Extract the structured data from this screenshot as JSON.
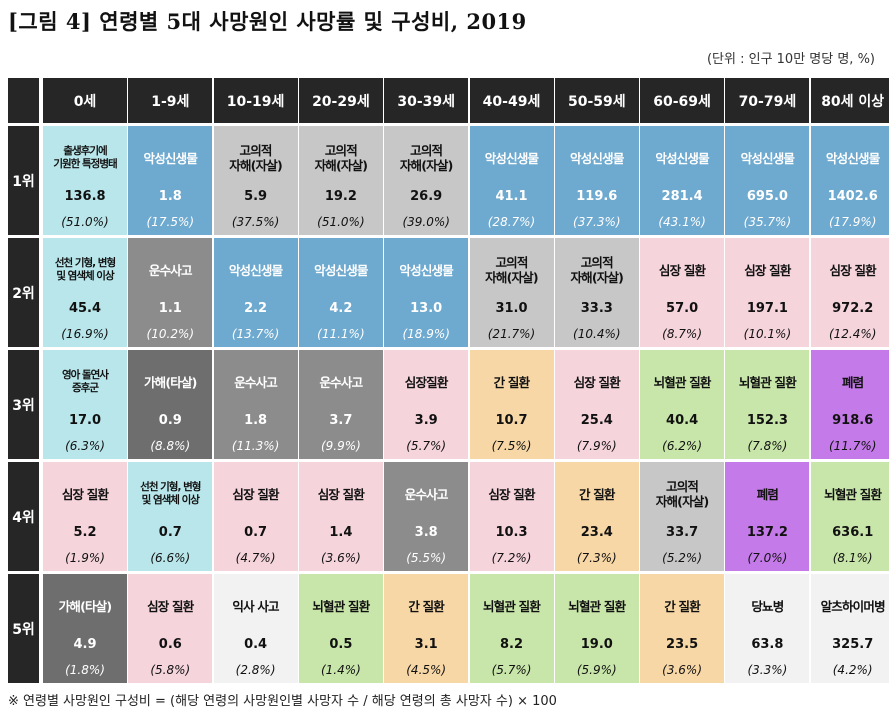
{
  "title": "[그림 4] 연령별 5대 사망원인 사망률 및 구성비, 2019",
  "unit_note": "(단위 : 인구 10만 명당 명, %)",
  "age_groups": [
    "0세",
    "1-9세",
    "10-19세",
    "20-29세",
    "30-39세",
    "40-49세",
    "50-59세",
    "60-69세",
    "70-79세",
    "80세 이상"
  ],
  "ranks": [
    "1위",
    "2위",
    "3위",
    "4위",
    "5위"
  ],
  "rows": [
    [
      {
        "name": "출생후기에\n기원한 특정병태",
        "value": "136.8",
        "pct": "(51.0%)",
        "color": "cyan",
        "small": true
      },
      {
        "name": "악성신생물",
        "value": "1.8",
        "pct": "(17.5%)",
        "color": "cancer"
      },
      {
        "name": "고의적\n자해(자살)",
        "value": "5.9",
        "pct": "(37.5%)",
        "color": "suicide"
      },
      {
        "name": "고의적\n자해(자살)",
        "value": "19.2",
        "pct": "(51.0%)",
        "color": "suicide"
      },
      {
        "name": "고의적\n자해(자살)",
        "value": "26.9",
        "pct": "(39.0%)",
        "color": "suicide"
      },
      {
        "name": "악성신생물",
        "value": "41.1",
        "pct": "(28.7%)",
        "color": "cancer"
      },
      {
        "name": "악성신생물",
        "value": "119.6",
        "pct": "(37.3%)",
        "color": "cancer"
      },
      {
        "name": "악성신생물",
        "value": "281.4",
        "pct": "(43.1%)",
        "color": "cancer"
      },
      {
        "name": "악성신생물",
        "value": "695.0",
        "pct": "(35.7%)",
        "color": "cancer"
      },
      {
        "name": "악성신생물",
        "value": "1402.6",
        "pct": "(17.9%)",
        "color": "cancer"
      }
    ],
    [
      {
        "name": "선천 기형, 변형\n및 염색체 이상",
        "value": "45.4",
        "pct": "(16.9%)",
        "color": "cyan",
        "small": true
      },
      {
        "name": "운수사고",
        "value": "1.1",
        "pct": "(10.2%)",
        "color": "trans"
      },
      {
        "name": "악성신생물",
        "value": "2.2",
        "pct": "(13.7%)",
        "color": "cancer"
      },
      {
        "name": "악성신생물",
        "value": "4.2",
        "pct": "(11.1%)",
        "color": "cancer"
      },
      {
        "name": "악성신생물",
        "value": "13.0",
        "pct": "(18.9%)",
        "color": "cancer"
      },
      {
        "name": "고의적\n자해(자살)",
        "value": "31.0",
        "pct": "(21.7%)",
        "color": "suicide"
      },
      {
        "name": "고의적\n자해(자살)",
        "value": "33.3",
        "pct": "(10.4%)",
        "color": "suicide"
      },
      {
        "name": "심장 질환",
        "value": "57.0",
        "pct": "(8.7%)",
        "color": "heart"
      },
      {
        "name": "심장 질환",
        "value": "197.1",
        "pct": "(10.1%)",
        "color": "heart"
      },
      {
        "name": "심장 질환",
        "value": "972.2",
        "pct": "(12.4%)",
        "color": "heart"
      }
    ],
    [
      {
        "name": "영아 돌연사\n증후군",
        "value": "17.0",
        "pct": "(6.3%)",
        "color": "cyan",
        "small": true
      },
      {
        "name": "가해(타살)",
        "value": "0.9",
        "pct": "(8.8%)",
        "color": "assault"
      },
      {
        "name": "운수사고",
        "value": "1.8",
        "pct": "(11.3%)",
        "color": "trans"
      },
      {
        "name": "운수사고",
        "value": "3.7",
        "pct": "(9.9%)",
        "color": "trans"
      },
      {
        "name": "심장질환",
        "value": "3.9",
        "pct": "(5.7%)",
        "color": "heart"
      },
      {
        "name": "간 질환",
        "value": "10.7",
        "pct": "(7.5%)",
        "color": "liver"
      },
      {
        "name": "심장 질환",
        "value": "25.4",
        "pct": "(7.9%)",
        "color": "heart"
      },
      {
        "name": "뇌혈관 질환",
        "value": "40.4",
        "pct": "(6.2%)",
        "color": "stroke"
      },
      {
        "name": "뇌혈관 질환",
        "value": "152.3",
        "pct": "(7.8%)",
        "color": "stroke"
      },
      {
        "name": "폐렴",
        "value": "918.6",
        "pct": "(11.7%)",
        "color": "pneu"
      }
    ],
    [
      {
        "name": "심장 질환",
        "value": "5.2",
        "pct": "(1.9%)",
        "color": "heart"
      },
      {
        "name": "선천 기형, 변형\n및 염색체 이상",
        "value": "0.7",
        "pct": "(6.6%)",
        "color": "cyan",
        "small": true
      },
      {
        "name": "심장 질환",
        "value": "0.7",
        "pct": "(4.7%)",
        "color": "heart"
      },
      {
        "name": "심장 질환",
        "value": "1.4",
        "pct": "(3.6%)",
        "color": "heart"
      },
      {
        "name": "운수사고",
        "value": "3.8",
        "pct": "(5.5%)",
        "color": "trans"
      },
      {
        "name": "심장 질환",
        "value": "10.3",
        "pct": "(7.2%)",
        "color": "heart"
      },
      {
        "name": "간 질환",
        "value": "23.4",
        "pct": "(7.3%)",
        "color": "liver"
      },
      {
        "name": "고의적\n자해(자살)",
        "value": "33.7",
        "pct": "(5.2%)",
        "color": "suicide"
      },
      {
        "name": "폐렴",
        "value": "137.2",
        "pct": "(7.0%)",
        "color": "pneu"
      },
      {
        "name": "뇌혈관 질환",
        "value": "636.1",
        "pct": "(8.1%)",
        "color": "stroke"
      }
    ],
    [
      {
        "name": "가해(타살)",
        "value": "4.9",
        "pct": "(1.8%)",
        "color": "assault"
      },
      {
        "name": "심장 질환",
        "value": "0.6",
        "pct": "(5.8%)",
        "color": "heart"
      },
      {
        "name": "익사 사고",
        "value": "0.4",
        "pct": "(2.8%)",
        "color": "white"
      },
      {
        "name": "뇌혈관 질환",
        "value": "0.5",
        "pct": "(1.4%)",
        "color": "stroke"
      },
      {
        "name": "간 질환",
        "value": "3.1",
        "pct": "(4.5%)",
        "color": "liver"
      },
      {
        "name": "뇌혈관 질환",
        "value": "8.2",
        "pct": "(5.7%)",
        "color": "stroke"
      },
      {
        "name": "뇌혈관 질환",
        "value": "19.0",
        "pct": "(5.9%)",
        "color": "stroke"
      },
      {
        "name": "간 질환",
        "value": "23.5",
        "pct": "(3.6%)",
        "color": "liver"
      },
      {
        "name": "당뇨병",
        "value": "63.8",
        "pct": "(3.3%)",
        "color": "white"
      },
      {
        "name": "알츠하이머병",
        "value": "325.7",
        "pct": "(4.2%)",
        "color": "white"
      }
    ]
  ],
  "colors": {
    "cancer": "#6ea9cf",
    "suicide": "#c7c7c7",
    "cyan": "#b8e6ea",
    "heart": "#f5d4dc",
    "trans": "#8c8c8c",
    "assault": "#6e6e6e",
    "liver": "#f8d7a6",
    "stroke": "#c8e6a9",
    "pneu": "#c47ae8",
    "white": "#f2f2f2",
    "header": "#262626"
  },
  "footnote": "※ 연령별 사망원인 구성비 = (해당 연령의 사망원인별 사망자 수 / 해당 연령의 총 사망자 수) × 100"
}
